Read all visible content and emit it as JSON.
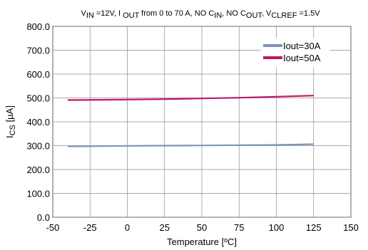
{
  "chart_data": {
    "type": "line",
    "title_parts": [
      "V",
      "IN",
      " =12V, I ",
      "OUT",
      " from 0 to 70 A, NO C",
      "IN",
      ", NO C",
      "OUT",
      ", V",
      "CLREF",
      " =1.5V"
    ],
    "xlabel": "Temperature [ºC]",
    "ylabel_parts": [
      "I",
      "CS",
      " [µA]"
    ],
    "xlim": [
      -50,
      150
    ],
    "ylim": [
      0,
      800
    ],
    "x_ticks": [
      "-50",
      "-25",
      "0",
      "25",
      "50",
      "75",
      "100",
      "125",
      "150"
    ],
    "y_ticks": [
      "0.0",
      "100.0",
      "200.0",
      "300.0",
      "400.0",
      "500.0",
      "600.0",
      "700.0",
      "800.0"
    ],
    "grid": true,
    "legend_position": "top-right",
    "series": [
      {
        "name": "Iout=30A",
        "color": "#7f93bd",
        "x": [
          -40,
          0,
          25,
          50,
          75,
          100,
          125
        ],
        "y": [
          297,
          299,
          300,
          301,
          302,
          303,
          306
        ]
      },
      {
        "name": "Iout=50A",
        "color": "#c2166b",
        "x": [
          -40,
          0,
          25,
          50,
          75,
          100,
          125
        ],
        "y": [
          491,
          493,
          495,
          498,
          501,
          505,
          510
        ]
      }
    ]
  }
}
